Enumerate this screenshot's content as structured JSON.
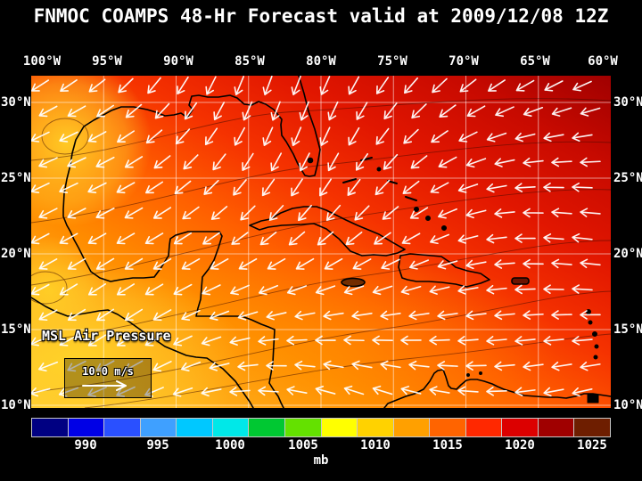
{
  "header": {
    "title": "FNMOC COAMPS 48-Hr Forecast valid at 2009/12/08 12Z"
  },
  "axes": {
    "lon_labels": [
      "100°W",
      "95°W",
      "90°W",
      "85°W",
      "80°W",
      "75°W",
      "70°W",
      "65°W",
      "60°W"
    ],
    "lat_labels_left": [
      "30°N",
      "25°N",
      "20°N",
      "15°N",
      "10°N"
    ],
    "lat_labels_right": [
      "30°N",
      "25°N",
      "20°N",
      "15°N",
      "10°N"
    ]
  },
  "map": {
    "field_label": "MSL Air Pressure",
    "wind_scale_label": "10.0 m/s"
  },
  "colorbar": {
    "units_label": "mb",
    "tick_labels": [
      "990",
      "995",
      "1000",
      "1005",
      "1010",
      "1015",
      "1020",
      "1025"
    ],
    "segment_colors": [
      "#000082",
      "#0000e6",
      "#2a50ff",
      "#3fa0ff",
      "#00c8ff",
      "#00e8e8",
      "#00c832",
      "#64e100",
      "#ffff00",
      "#ffd200",
      "#ffa000",
      "#ff6400",
      "#ff2800",
      "#dc0000",
      "#a00000",
      "#6e1e00"
    ]
  },
  "chart_data": {
    "type": "heatmap",
    "title": "FNMOC COAMPS 48-Hr Forecast valid at 2009/12/08 12Z",
    "model": "FNMOC COAMPS",
    "forecast_hours": 48,
    "valid_time": "2009/12/08 12Z",
    "field": "MSL Air Pressure",
    "units": "mb",
    "lon_ticks_deg_west": [
      100,
      95,
      90,
      85,
      80,
      75,
      70,
      65,
      60
    ],
    "lat_ticks_deg_north": [
      30,
      25,
      20,
      15,
      10
    ],
    "colorbar_ticks_mb": [
      990,
      995,
      1000,
      1005,
      1010,
      1015,
      1020,
      1025
    ],
    "wind_reference_ms": 10.0,
    "approx_pressure_grid_mb": {
      "lon_deg_west": [
        100,
        95,
        90,
        85,
        80,
        75,
        70,
        65,
        60
      ],
      "lat_deg_north": [
        30,
        25,
        20,
        15,
        10
      ],
      "values": [
        [
          1009,
          1013,
          1016,
          1018,
          1019,
          1021,
          1022,
          1023,
          1023
        ],
        [
          1011,
          1014,
          1016,
          1017,
          1018,
          1020,
          1021,
          1022,
          1022
        ],
        [
          1010,
          1012,
          1014,
          1015,
          1016,
          1018,
          1019,
          1020,
          1021
        ],
        [
          1008,
          1010,
          1012,
          1013,
          1015,
          1016,
          1017,
          1018,
          1019
        ],
        [
          1008,
          1009,
          1010,
          1011,
          1012,
          1013,
          1014,
          1015,
          1016
        ]
      ]
    }
  }
}
